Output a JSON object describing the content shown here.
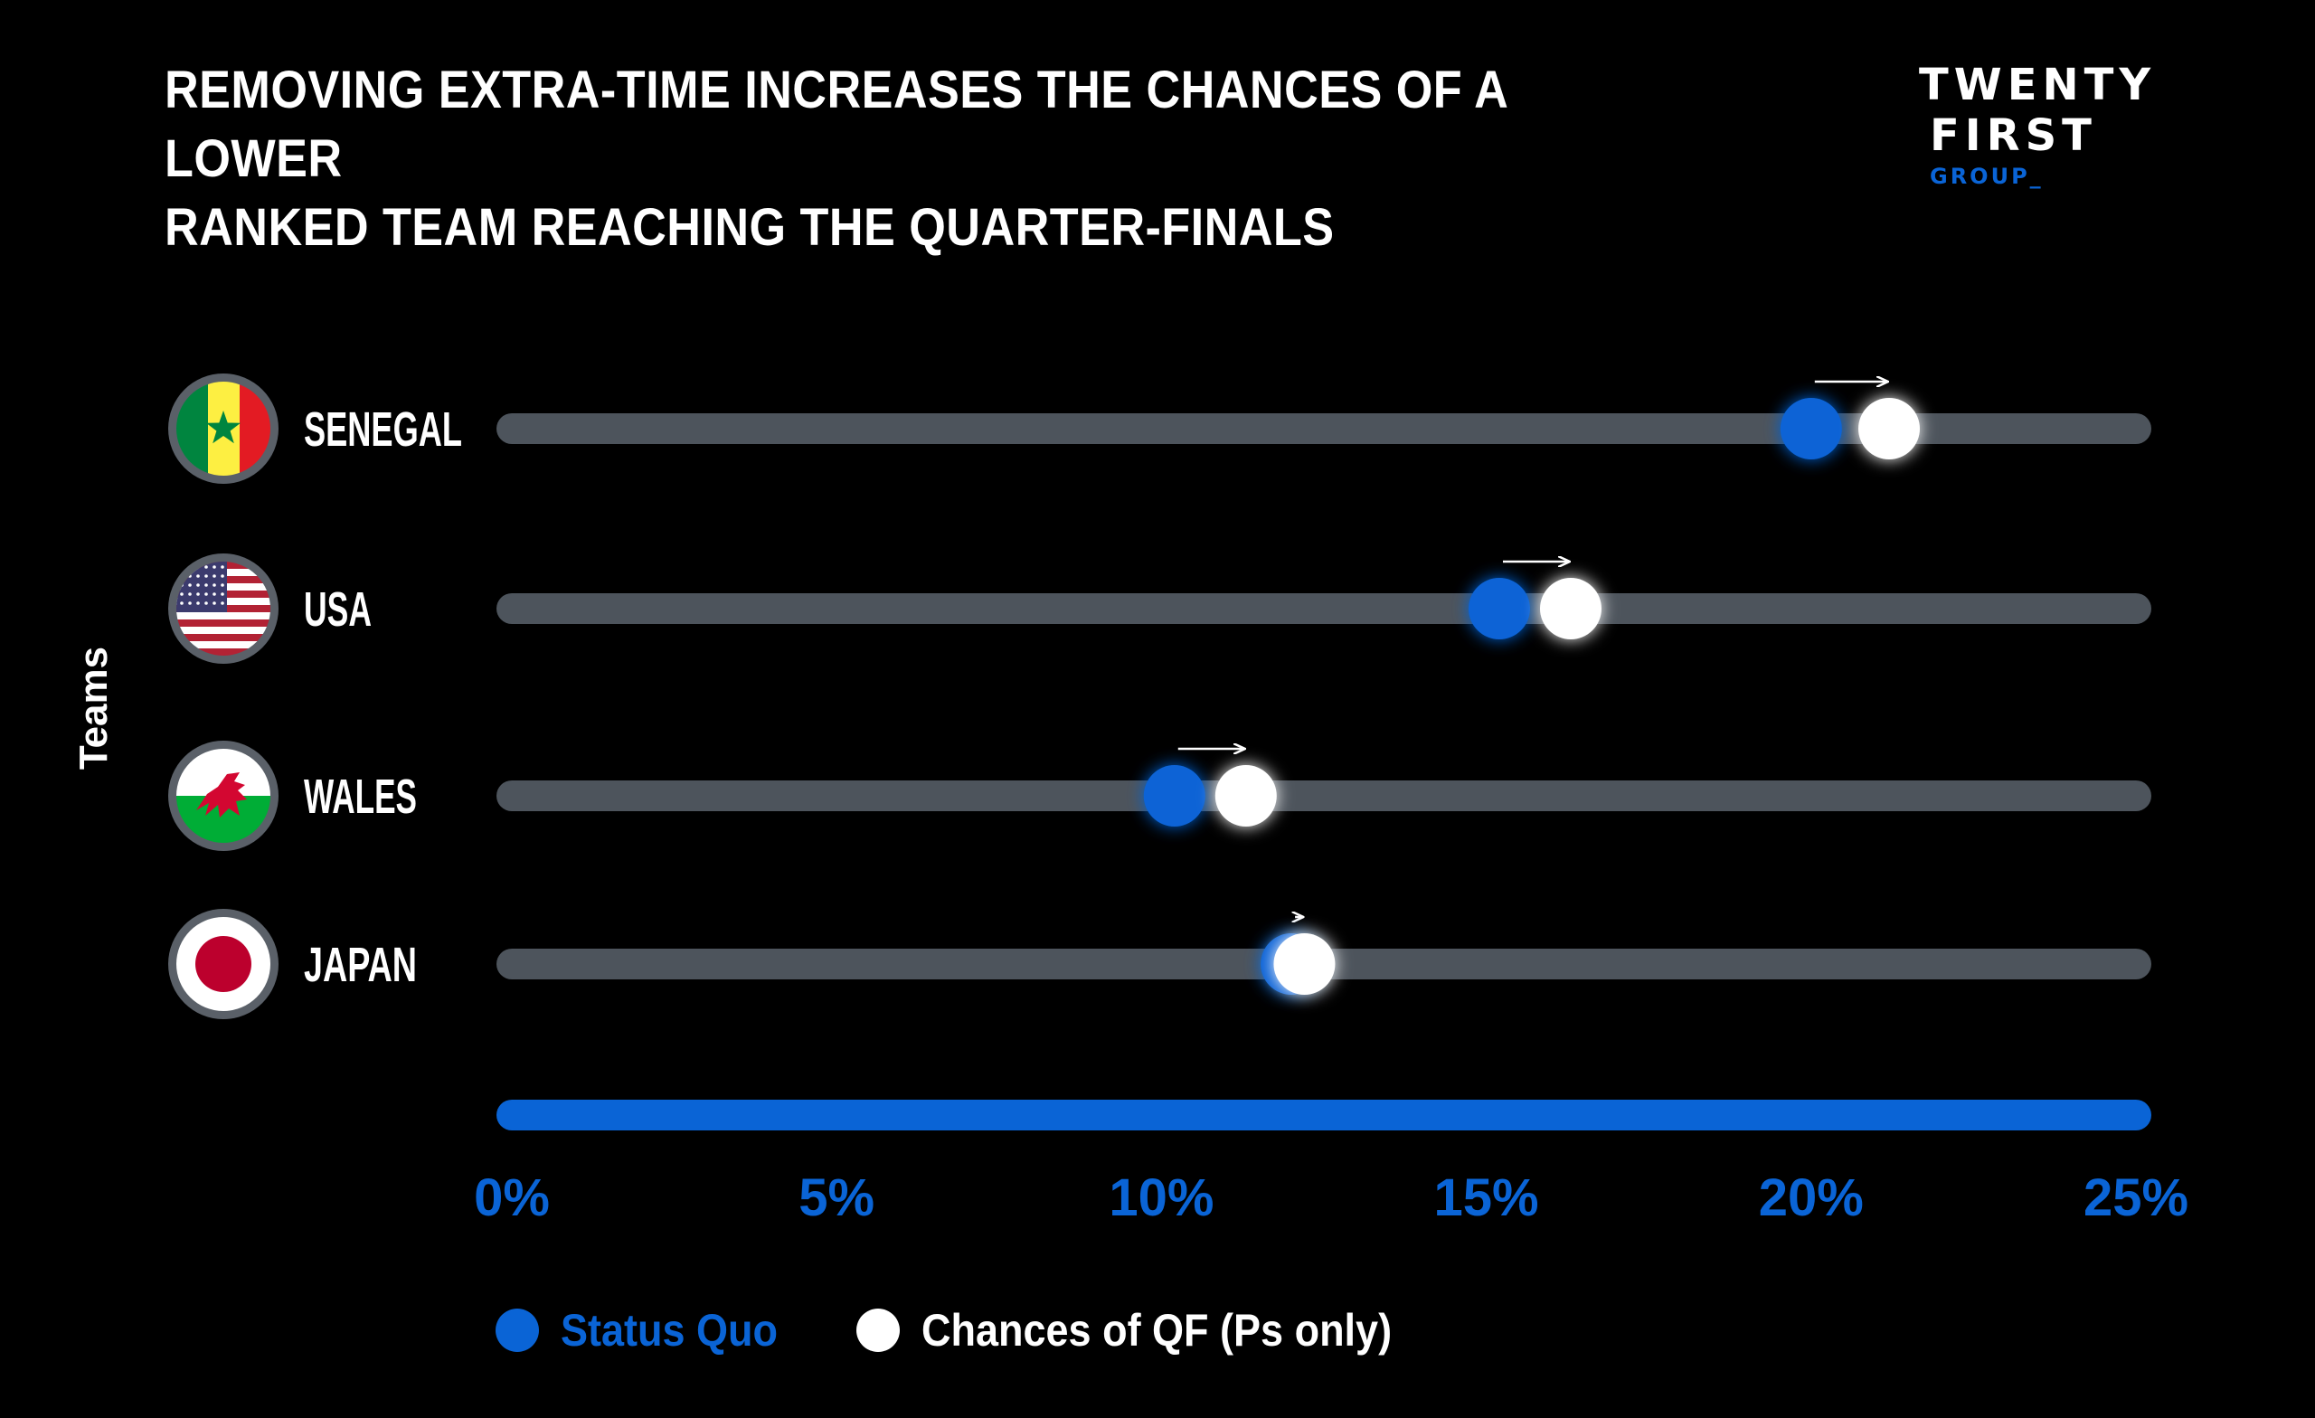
{
  "title_line1": "REMOVING EXTRA-TIME INCREASES THE CHANCES OF A LOWER",
  "title_line2": "RANKED TEAM REACHING THE QUARTER-FINALS",
  "logo": {
    "line1": "TWENTY",
    "line2": "FIRST",
    "line3": "GROUP_"
  },
  "colors": {
    "background": "#000000",
    "accent": "#0a64d6",
    "track": "#4d545c",
    "white": "#ffffff"
  },
  "chart_data": {
    "type": "dumbbell",
    "title": "REMOVING EXTRA-TIME INCREASES THE CHANCES OF A LOWER RANKED TEAM REACHING THE QUARTER-FINALS",
    "ylabel": "Teams",
    "xlabel": "",
    "xlim": [
      0,
      25
    ],
    "ticks": [
      "0%",
      "5%",
      "10%",
      "15%",
      "20%",
      "25%"
    ],
    "tick_values": [
      0,
      5,
      10,
      15,
      20,
      25
    ],
    "categories": [
      "SENEGAL",
      "USA",
      "WALES",
      "JAPAN"
    ],
    "flags": [
      "senegal-flag",
      "usa-flag",
      "wales-flag",
      "japan-flag"
    ],
    "series": [
      {
        "name": "Status Quo",
        "color": "#0a64d6",
        "values": [
          20.0,
          15.2,
          10.2,
          12.0
        ]
      },
      {
        "name": "Chances of QF (Ps only)",
        "color": "#ffffff",
        "values": [
          21.2,
          16.3,
          11.3,
          12.2
        ]
      }
    ],
    "legend_position": "bottom-left"
  }
}
